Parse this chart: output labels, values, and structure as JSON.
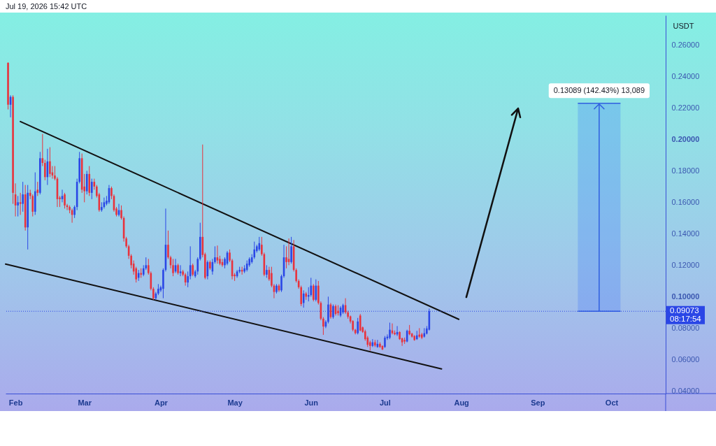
{
  "chart_data": {
    "type": "candlestick",
    "ylabel": "USDT",
    "annotations": [
      "Jul 19, 2026 15:42 UTC",
      {
        "text": "0.13089 (142.43%) 13,089",
        "x": "2026-09-26",
        "y": 0.09073
      },
      "08:17:54"
    ],
    "xlim": [
      "2026-01-28",
      "2026-10-23"
    ],
    "xticks": [
      {
        "value": "2026-02-01",
        "label": "Feb"
      },
      {
        "value": "2026-03-01",
        "label": "Mar"
      },
      {
        "value": "2026-04-01",
        "label": "Apr"
      },
      {
        "value": "2026-05-01",
        "label": "May"
      },
      {
        "value": "2026-06-01",
        "label": "Jun"
      },
      {
        "value": "2026-07-01",
        "label": "Jul"
      },
      {
        "value": "2026-08-01",
        "label": "Aug"
      },
      {
        "value": "2026-09-01",
        "label": "Sep"
      },
      {
        "value": "2026-10-01",
        "label": "Oct"
      }
    ],
    "ylim": [
      0.0384,
      0.2788
    ],
    "yticks": [
      {
        "value": 0.04,
        "label": "0.04000"
      },
      {
        "value": 0.06,
        "label": "0.06000"
      },
      {
        "value": 0.08,
        "label": "0.08000"
      },
      {
        "value": 0.1,
        "label": "0.10000"
      },
      {
        "value": 0.12,
        "label": "0.12000"
      },
      {
        "value": 0.14,
        "label": "0.14000"
      },
      {
        "value": 0.16,
        "label": "0.16000"
      },
      {
        "value": 0.18,
        "label": "0.18000"
      },
      {
        "value": 0.2,
        "label": "0.20000"
      },
      {
        "value": 0.22,
        "label": "0.22000"
      },
      {
        "value": 0.24,
        "label": "0.24000"
      },
      {
        "value": 0.26,
        "label": "0.26000"
      }
    ],
    "ref_lines": [
      {
        "axis": "y",
        "value": 0.09073,
        "label": "0.09073",
        "line_style": "dotted",
        "color": "#2a46e6"
      }
    ],
    "series": [
      {
        "type": "line",
        "x": [
          "2026-02-03",
          "2026-07-31"
        ],
        "values": [
          0.2113,
          0.0856
        ],
        "color": "#111111"
      },
      {
        "type": "line",
        "x": [
          "2026-01-28",
          "2026-07-24"
        ],
        "values": [
          0.1207,
          0.0541
        ],
        "color": "#111111"
      },
      {
        "type": "candlestick",
        "x": [
          "2026-01-29",
          "2026-01-30",
          "2026-01-31",
          "2026-02-01",
          "2026-02-02",
          "2026-02-03",
          "2026-02-04",
          "2026-02-05",
          "2026-02-06",
          "2026-02-07",
          "2026-02-08",
          "2026-02-09",
          "2026-02-10",
          "2026-02-11",
          "2026-02-12",
          "2026-02-13",
          "2026-02-14",
          "2026-02-15",
          "2026-02-16",
          "2026-02-17",
          "2026-02-18",
          "2026-02-19",
          "2026-02-20",
          "2026-02-21",
          "2026-02-22",
          "2026-02-23",
          "2026-02-24",
          "2026-02-25",
          "2026-02-26",
          "2026-02-27",
          "2026-02-28",
          "2026-03-01",
          "2026-03-02",
          "2026-03-03",
          "2026-03-04",
          "2026-03-05",
          "2026-03-06",
          "2026-03-07",
          "2026-03-08",
          "2026-03-09",
          "2026-03-10",
          "2026-03-11",
          "2026-03-12",
          "2026-03-13",
          "2026-03-14",
          "2026-03-15",
          "2026-03-16",
          "2026-03-17",
          "2026-03-18",
          "2026-03-19",
          "2026-03-20",
          "2026-03-21",
          "2026-03-22",
          "2026-03-23",
          "2026-03-24",
          "2026-03-25",
          "2026-03-26",
          "2026-03-27",
          "2026-03-28",
          "2026-03-29",
          "2026-03-30",
          "2026-03-31",
          "2026-04-01",
          "2026-04-02",
          "2026-04-03",
          "2026-04-04",
          "2026-04-05",
          "2026-04-06",
          "2026-04-07",
          "2026-04-08",
          "2026-04-09",
          "2026-04-10",
          "2026-04-11",
          "2026-04-12",
          "2026-04-13",
          "2026-04-14",
          "2026-04-15",
          "2026-04-16",
          "2026-04-17",
          "2026-04-18",
          "2026-04-19",
          "2026-04-20",
          "2026-04-21",
          "2026-04-22",
          "2026-04-23",
          "2026-04-24",
          "2026-04-25",
          "2026-04-26",
          "2026-04-27",
          "2026-04-28",
          "2026-04-29",
          "2026-04-30",
          "2026-05-01",
          "2026-05-02",
          "2026-05-03",
          "2026-05-04",
          "2026-05-05",
          "2026-05-06",
          "2026-05-07",
          "2026-05-08",
          "2026-05-09",
          "2026-05-10",
          "2026-05-11",
          "2026-05-12",
          "2026-05-13",
          "2026-05-14",
          "2026-05-15",
          "2026-05-16",
          "2026-05-17",
          "2026-05-18",
          "2026-05-19",
          "2026-05-20",
          "2026-05-21",
          "2026-05-22",
          "2026-05-23",
          "2026-05-24",
          "2026-05-25",
          "2026-05-26",
          "2026-05-27",
          "2026-05-28",
          "2026-05-29",
          "2026-05-30",
          "2026-05-31",
          "2026-06-01",
          "2026-06-02",
          "2026-06-03",
          "2026-06-04",
          "2026-06-05",
          "2026-06-06",
          "2026-06-07",
          "2026-06-08",
          "2026-06-09",
          "2026-06-10",
          "2026-06-11",
          "2026-06-12",
          "2026-06-13",
          "2026-06-14",
          "2026-06-15",
          "2026-06-16",
          "2026-06-17",
          "2026-06-18",
          "2026-06-19",
          "2026-06-20",
          "2026-06-21",
          "2026-06-22",
          "2026-06-23",
          "2026-06-24",
          "2026-06-25",
          "2026-06-26",
          "2026-06-27",
          "2026-06-28",
          "2026-06-29",
          "2026-06-30",
          "2026-07-01",
          "2026-07-02",
          "2026-07-03",
          "2026-07-04",
          "2026-07-05",
          "2026-07-06",
          "2026-07-07",
          "2026-07-08",
          "2026-07-09",
          "2026-07-10",
          "2026-07-11",
          "2026-07-12",
          "2026-07-13",
          "2026-07-14",
          "2026-07-15",
          "2026-07-16",
          "2026-07-17",
          "2026-07-18",
          "2026-07-19"
        ],
        "ohlc": [
          [
            0.2486,
            0.249,
            0.219,
            0.222
          ],
          [
            0.222,
            0.228,
            0.214,
            0.227
          ],
          [
            0.227,
            0.228,
            0.159,
            0.166
          ],
          [
            0.165,
            0.172,
            0.151,
            0.158
          ],
          [
            0.158,
            0.164,
            0.151,
            0.16
          ],
          [
            0.16,
            0.166,
            0.152,
            0.159
          ],
          [
            0.159,
            0.173,
            0.154,
            0.165
          ],
          [
            0.165,
            0.171,
            0.142,
            0.144
          ],
          [
            0.144,
            0.171,
            0.13,
            0.166
          ],
          [
            0.166,
            0.168,
            0.162,
            0.164
          ],
          [
            0.164,
            0.165,
            0.151,
            0.154
          ],
          [
            0.154,
            0.179,
            0.152,
            0.167
          ],
          [
            0.168,
            0.173,
            0.164,
            0.166
          ],
          [
            0.166,
            0.192,
            0.165,
            0.188
          ],
          [
            0.188,
            0.2034,
            0.183,
            0.185
          ],
          [
            0.185,
            0.187,
            0.174,
            0.176
          ],
          [
            0.176,
            0.194,
            0.171,
            0.186
          ],
          [
            0.186,
            0.195,
            0.176,
            0.178
          ],
          [
            0.179,
            0.183,
            0.175,
            0.177
          ],
          [
            0.177,
            0.183,
            0.174,
            0.175
          ],
          [
            0.175,
            0.176,
            0.157,
            0.162
          ],
          [
            0.163,
            0.164,
            0.157,
            0.162
          ],
          [
            0.162,
            0.168,
            0.16,
            0.164
          ],
          [
            0.165,
            0.166,
            0.156,
            0.158
          ],
          [
            0.158,
            0.159,
            0.155,
            0.157
          ],
          [
            0.157,
            0.158,
            0.153,
            0.155
          ],
          [
            0.155,
            0.156,
            0.147,
            0.152
          ],
          [
            0.152,
            0.158,
            0.15,
            0.157
          ],
          [
            0.157,
            0.175,
            0.155,
            0.173
          ],
          [
            0.173,
            0.192,
            0.172,
            0.188
          ],
          [
            0.188,
            0.191,
            0.166,
            0.168
          ],
          [
            0.17,
            0.178,
            0.16,
            0.167
          ],
          [
            0.167,
            0.18,
            0.165,
            0.178
          ],
          [
            0.178,
            0.183,
            0.164,
            0.166
          ],
          [
            0.166,
            0.175,
            0.162,
            0.173
          ],
          [
            0.173,
            0.175,
            0.168,
            0.17
          ],
          [
            0.17,
            0.171,
            0.163,
            0.164
          ],
          [
            0.165,
            0.166,
            0.154,
            0.155
          ],
          [
            0.155,
            0.16,
            0.154,
            0.157
          ],
          [
            0.157,
            0.163,
            0.156,
            0.16
          ],
          [
            0.159,
            0.164,
            0.158,
            0.161
          ],
          [
            0.16,
            0.171,
            0.159,
            0.169
          ],
          [
            0.169,
            0.17,
            0.162,
            0.164
          ],
          [
            0.164,
            0.165,
            0.154,
            0.155
          ],
          [
            0.156,
            0.157,
            0.151,
            0.152
          ],
          [
            0.152,
            0.159,
            0.151,
            0.155
          ],
          [
            0.155,
            0.158,
            0.149,
            0.15
          ],
          [
            0.15,
            0.151,
            0.135,
            0.137
          ],
          [
            0.137,
            0.138,
            0.131,
            0.132
          ],
          [
            0.132,
            0.133,
            0.124,
            0.126
          ],
          [
            0.126,
            0.127,
            0.118,
            0.12
          ],
          [
            0.121,
            0.123,
            0.114,
            0.116
          ],
          [
            0.118,
            0.119,
            0.109,
            0.111
          ],
          [
            0.112,
            0.117,
            0.11,
            0.115
          ],
          [
            0.115,
            0.118,
            0.112,
            0.114
          ],
          [
            0.114,
            0.12,
            0.113,
            0.118
          ],
          [
            0.118,
            0.125,
            0.117,
            0.12
          ],
          [
            0.12,
            0.124,
            0.114,
            0.115
          ],
          [
            0.115,
            0.116,
            0.104,
            0.105
          ],
          [
            0.105,
            0.106,
            0.098,
            0.099
          ],
          [
            0.099,
            0.103,
            0.098,
            0.102
          ],
          [
            0.102,
            0.108,
            0.101,
            0.105
          ],
          [
            0.104,
            0.107,
            0.103,
            0.106
          ],
          [
            0.105,
            0.118,
            0.099,
            0.117
          ],
          [
            0.117,
            0.156,
            0.116,
            0.133
          ],
          [
            0.133,
            0.142,
            0.124,
            0.125
          ],
          [
            0.125,
            0.126,
            0.118,
            0.12
          ],
          [
            0.12,
            0.124,
            0.113,
            0.115
          ],
          [
            0.116,
            0.124,
            0.115,
            0.12
          ],
          [
            0.12,
            0.121,
            0.114,
            0.115
          ],
          [
            0.115,
            0.12,
            0.113,
            0.116
          ],
          [
            0.116,
            0.117,
            0.113,
            0.114
          ],
          [
            0.114,
            0.115,
            0.107,
            0.109
          ],
          [
            0.109,
            0.116,
            0.106,
            0.113
          ],
          [
            0.113,
            0.132,
            0.111,
            0.12
          ],
          [
            0.12,
            0.121,
            0.113,
            0.114
          ],
          [
            0.113,
            0.117,
            0.112,
            0.116
          ],
          [
            0.116,
            0.125,
            0.114,
            0.124
          ],
          [
            0.124,
            0.147,
            0.123,
            0.138
          ],
          [
            0.138,
            0.1967,
            0.125,
            0.1265
          ],
          [
            0.127,
            0.128,
            0.111,
            0.112
          ],
          [
            0.113,
            0.123,
            0.111,
            0.122
          ],
          [
            0.122,
            0.123,
            0.117,
            0.118
          ],
          [
            0.116,
            0.124,
            0.114,
            0.122
          ],
          [
            0.122,
            0.132,
            0.121,
            0.125
          ],
          [
            0.125,
            0.1325,
            0.121,
            0.123
          ],
          [
            0.124,
            0.126,
            0.12,
            0.121
          ],
          [
            0.122,
            0.124,
            0.119,
            0.12
          ],
          [
            0.12,
            0.125,
            0.118,
            0.124
          ],
          [
            0.121,
            0.129,
            0.12,
            0.128
          ],
          [
            0.128,
            0.13,
            0.122,
            0.123
          ],
          [
            0.123,
            0.124,
            0.111,
            0.113
          ],
          [
            0.114,
            0.115,
            0.11,
            0.113
          ],
          [
            0.113,
            0.117,
            0.112,
            0.116
          ],
          [
            0.116,
            0.119,
            0.115,
            0.117
          ],
          [
            0.117,
            0.119,
            0.114,
            0.116
          ],
          [
            0.116,
            0.12,
            0.115,
            0.118
          ],
          [
            0.117,
            0.123,
            0.116,
            0.121
          ],
          [
            0.12,
            0.125,
            0.119,
            0.124
          ],
          [
            0.122,
            0.127,
            0.121,
            0.125
          ],
          [
            0.125,
            0.135,
            0.124,
            0.13
          ],
          [
            0.129,
            0.133,
            0.128,
            0.132
          ],
          [
            0.13,
            0.138,
            0.129,
            0.134
          ],
          [
            0.133,
            0.138,
            0.126,
            0.127
          ],
          [
            0.127,
            0.128,
            0.113,
            0.114
          ],
          [
            0.114,
            0.12,
            0.112,
            0.117
          ],
          [
            0.117,
            0.119,
            0.11,
            0.111
          ],
          [
            0.115,
            0.119,
            0.106,
            0.107
          ],
          [
            0.107,
            0.108,
            0.099,
            0.103
          ],
          [
            0.103,
            0.108,
            0.102,
            0.107
          ],
          [
            0.107,
            0.108,
            0.103,
            0.104
          ],
          [
            0.104,
            0.114,
            0.103,
            0.113
          ],
          [
            0.113,
            0.133,
            0.112,
            0.125
          ],
          [
            0.125,
            0.132,
            0.118,
            0.122
          ],
          [
            0.124,
            0.137,
            0.12,
            0.122
          ],
          [
            0.122,
            0.138,
            0.121,
            0.132
          ],
          [
            0.132,
            0.136,
            0.116,
            0.117
          ],
          [
            0.117,
            0.118,
            0.109,
            0.11
          ],
          [
            0.11,
            0.111,
            0.105,
            0.106
          ],
          [
            0.106,
            0.107,
            0.094,
            0.0953
          ],
          [
            0.096,
            0.104,
            0.093,
            0.102
          ],
          [
            0.102,
            0.103,
            0.098,
            0.1
          ],
          [
            0.1,
            0.106,
            0.097,
            0.101
          ],
          [
            0.101,
            0.112,
            0.1,
            0.107
          ],
          [
            0.107,
            0.108,
            0.097,
            0.098
          ],
          [
            0.098,
            0.111,
            0.097,
            0.107
          ],
          [
            0.107,
            0.11,
            0.095,
            0.096
          ],
          [
            0.096,
            0.097,
            0.085,
            0.086
          ],
          [
            0.086,
            0.087,
            0.0757,
            0.081
          ],
          [
            0.081,
            0.085,
            0.08,
            0.084
          ],
          [
            0.084,
            0.1,
            0.083,
            0.095
          ],
          [
            0.095,
            0.096,
            0.086,
            0.087
          ],
          [
            0.087,
            0.095,
            0.086,
            0.094
          ],
          [
            0.094,
            0.095,
            0.088,
            0.089
          ],
          [
            0.091,
            0.0946,
            0.088,
            0.0895
          ],
          [
            0.088,
            0.094,
            0.087,
            0.093
          ],
          [
            0.09,
            0.0955,
            0.089,
            0.0946
          ],
          [
            0.0946,
            0.099,
            0.089,
            0.09
          ],
          [
            0.09,
            0.091,
            0.086,
            0.0872
          ],
          [
            0.0875,
            0.088,
            0.083,
            0.0842
          ],
          [
            0.0845,
            0.085,
            0.078,
            0.079
          ],
          [
            0.079,
            0.0795,
            0.076,
            0.0768
          ],
          [
            0.0768,
            0.0865,
            0.076,
            0.0842
          ],
          [
            0.088,
            0.089,
            0.078,
            0.0785
          ],
          [
            0.0805,
            0.081,
            0.077,
            0.0776
          ],
          [
            0.078,
            0.079,
            0.072,
            0.073
          ],
          [
            0.074,
            0.075,
            0.068,
            0.0694
          ],
          [
            0.071,
            0.072,
            0.0657,
            0.0687
          ],
          [
            0.0687,
            0.073,
            0.068,
            0.071
          ],
          [
            0.071,
            0.0725,
            0.068,
            0.069
          ],
          [
            0.068,
            0.0725,
            0.0675,
            0.07
          ],
          [
            0.07,
            0.071,
            0.0675,
            0.068
          ],
          [
            0.0687,
            0.069,
            0.066,
            0.0665
          ],
          [
            0.068,
            0.075,
            0.0675,
            0.0739
          ],
          [
            0.0735,
            0.076,
            0.0725,
            0.0746
          ],
          [
            0.0739,
            0.0835,
            0.073,
            0.079
          ],
          [
            0.0785,
            0.083,
            0.076,
            0.0768
          ],
          [
            0.077,
            0.0785,
            0.0755,
            0.0761
          ],
          [
            0.076,
            0.0813,
            0.075,
            0.0775
          ],
          [
            0.0775,
            0.078,
            0.0725,
            0.073
          ],
          [
            0.0735,
            0.074,
            0.0687,
            0.071
          ],
          [
            0.0725,
            0.074,
            0.07,
            0.0715
          ],
          [
            0.0715,
            0.079,
            0.071,
            0.0783
          ],
          [
            0.0783,
            0.082,
            0.0755,
            0.0761
          ],
          [
            0.0765,
            0.077,
            0.074,
            0.0746
          ],
          [
            0.075,
            0.0755,
            0.072,
            0.0724
          ],
          [
            0.073,
            0.0783,
            0.0725,
            0.0754
          ],
          [
            0.0759,
            0.08,
            0.0739,
            0.0746
          ],
          [
            0.076,
            0.077,
            0.073,
            0.0739
          ],
          [
            0.0746,
            0.08,
            0.074,
            0.0768
          ],
          [
            0.0765,
            0.0813,
            0.076,
            0.0798
          ],
          [
            0.079,
            0.0924,
            0.0785,
            0.09073
          ]
        ],
        "colors": [
          "#e8323c",
          "#2a46e6",
          "#e8323c",
          "#e8323c",
          "#2a46e6",
          "#e8323c",
          "#2a46e6",
          "#e8323c",
          "#2a46e6",
          "#e8323c",
          "#e8323c",
          "#2a46e6",
          "#e8323c",
          "#2a46e6",
          "#e8323c",
          "#e8323c",
          "#2a46e6",
          "#e8323c",
          "#e8323c",
          "#e8323c",
          "#e8323c",
          "#e8323c",
          "#2a46e6",
          "#e8323c",
          "#e8323c",
          "#e8323c",
          "#e8323c",
          "#2a46e6",
          "#2a46e6",
          "#2a46e6",
          "#e8323c",
          "#e8323c",
          "#2a46e6",
          "#e8323c",
          "#2a46e6",
          "#e8323c",
          "#e8323c",
          "#e8323c",
          "#2a46e6",
          "#2a46e6",
          "#2a46e6",
          "#2a46e6",
          "#e8323c",
          "#e8323c",
          "#e8323c",
          "#2a46e6",
          "#e8323c",
          "#e8323c",
          "#e8323c",
          "#e8323c",
          "#e8323c",
          "#e8323c",
          "#e8323c",
          "#2a46e6",
          "#e8323c",
          "#2a46e6",
          "#2a46e6",
          "#e8323c",
          "#e8323c",
          "#e8323c",
          "#2a46e6",
          "#2a46e6",
          "#2a46e6",
          "#2a46e6",
          "#2a46e6",
          "#e8323c",
          "#e8323c",
          "#e8323c",
          "#2a46e6",
          "#e8323c",
          "#2a46e6",
          "#e8323c",
          "#e8323c",
          "#2a46e6",
          "#2a46e6",
          "#e8323c",
          "#2a46e6",
          "#2a46e6",
          "#2a46e6",
          "#e8323c",
          "#e8323c",
          "#2a46e6",
          "#e8323c",
          "#2a46e6",
          "#2a46e6",
          "#e8323c",
          "#e8323c",
          "#e8323c",
          "#2a46e6",
          "#2a46e6",
          "#e8323c",
          "#e8323c",
          "#e8323c",
          "#2a46e6",
          "#2a46e6",
          "#e8323c",
          "#2a46e6",
          "#2a46e6",
          "#2a46e6",
          "#2a46e6",
          "#2a46e6",
          "#2a46e6",
          "#2a46e6",
          "#e8323c",
          "#e8323c",
          "#2a46e6",
          "#e8323c",
          "#e8323c",
          "#e8323c",
          "#2a46e6",
          "#e8323c",
          "#2a46e6",
          "#2a46e6",
          "#e8323c",
          "#e8323c",
          "#2a46e6",
          "#e8323c",
          "#e8323c",
          "#e8323c",
          "#e8323c",
          "#2a46e6",
          "#e8323c",
          "#2a46e6",
          "#2a46e6",
          "#e8323c",
          "#2a46e6",
          "#e8323c",
          "#e8323c",
          "#e8323c",
          "#2a46e6",
          "#2a46e6",
          "#e8323c",
          "#2a46e6",
          "#e8323c",
          "#e8323c",
          "#2a46e6",
          "#2a46e6",
          "#e8323c",
          "#e8323c",
          "#e8323c",
          "#e8323c",
          "#e8323c",
          "#2a46e6",
          "#e8323c",
          "#e8323c",
          "#e8323c",
          "#e8323c",
          "#e8323c",
          "#2a46e6",
          "#e8323c",
          "#2a46e6",
          "#e8323c",
          "#e8323c",
          "#2a46e6",
          "#2a46e6",
          "#2a46e6",
          "#e8323c",
          "#e8323c",
          "#2a46e6",
          "#e8323c",
          "#e8323c",
          "#e8323c",
          "#2a46e6",
          "#e8323c",
          "#e8323c",
          "#e8323c",
          "#2a46e6",
          "#e8323c",
          "#e8323c",
          "#2a46e6",
          "#2a46e6",
          "#2a46e6"
        ]
      }
    ]
  }
}
